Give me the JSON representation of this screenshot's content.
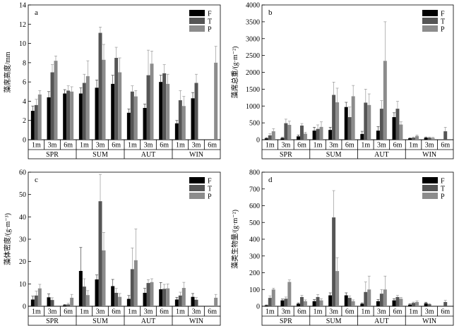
{
  "chart_data": [
    {
      "type": "bar",
      "panel": "a",
      "ylabel": "藻席高度/mm",
      "ylim": [
        0,
        14
      ],
      "yticks": [
        0,
        2,
        4,
        6,
        8,
        10,
        12,
        14
      ],
      "grid": false,
      "legend_position": "top-right",
      "seasons": [
        "SPR",
        "SUM",
        "AUT",
        "WIN"
      ],
      "categories": [
        "1m",
        "3m",
        "6m"
      ],
      "series": [
        {
          "name": "F",
          "color": "#000000",
          "values": [
            [
              3.0,
              4.4,
              4.8
            ],
            [
              4.8,
              5.4,
              5.8
            ],
            [
              2.8,
              3.3,
              6.0
            ],
            [
              1.7,
              4.3,
              null
            ]
          ],
          "errors": [
            [
              0.5,
              0.6,
              0.4
            ],
            [
              0.6,
              0.8,
              0.9
            ],
            [
              0.4,
              0.4,
              0.7
            ],
            [
              0.3,
              0.6,
              null
            ]
          ]
        },
        {
          "name": "T",
          "color": "#555555",
          "values": [
            [
              3.6,
              7.0,
              5.1
            ],
            [
              5.9,
              11.1,
              8.5
            ],
            [
              5.0,
              6.7,
              6.9
            ],
            [
              4.1,
              5.9,
              null
            ]
          ],
          "errors": [
            [
              0.6,
              0.8,
              0.5
            ],
            [
              0.9,
              0.6,
              1.1
            ],
            [
              0.6,
              2.6,
              0.9
            ],
            [
              1.0,
              0.9,
              null
            ]
          ]
        },
        {
          "name": "P",
          "color": "#8c8c8c",
          "values": [
            [
              4.7,
              8.2,
              5.0
            ],
            [
              6.6,
              8.3,
              7.0
            ],
            [
              4.5,
              7.9,
              5.8
            ],
            [
              3.5,
              null,
              8.0
            ]
          ],
          "errors": [
            [
              0.4,
              0.5,
              0.5
            ],
            [
              1.6,
              1.6,
              1.5
            ],
            [
              0.6,
              1.3,
              1.0
            ],
            [
              1.0,
              null,
              1.7
            ]
          ]
        }
      ]
    },
    {
      "type": "bar",
      "panel": "b",
      "ylabel": "藻席总重/(g·m⁻²)",
      "ylim": [
        0,
        4000
      ],
      "yticks": [
        0,
        500,
        1000,
        1500,
        2000,
        2500,
        3000,
        3500,
        4000
      ],
      "grid": false,
      "legend_position": "top-right",
      "seasons": [
        "SPR",
        "SUM",
        "AUT",
        "WIN"
      ],
      "categories": [
        "1m",
        "3m",
        "6m"
      ],
      "series": [
        {
          "name": "F",
          "color": "#000000",
          "values": [
            [
              40,
              50,
              100
            ],
            [
              270,
              290,
              970
            ],
            [
              170,
              270,
              670
            ],
            [
              40,
              60,
              null
            ]
          ],
          "errors": [
            [
              20,
              20,
              40
            ],
            [
              100,
              80,
              140
            ],
            [
              80,
              120,
              130
            ],
            [
              15,
              20,
              null
            ]
          ]
        },
        {
          "name": "T",
          "color": "#555555",
          "values": [
            [
              130,
              490,
              420
            ],
            [
              320,
              1330,
              670
            ],
            [
              1100,
              920,
              920
            ],
            [
              60,
              60,
              250
            ]
          ],
          "errors": [
            [
              50,
              120,
              60
            ],
            [
              120,
              380,
              300
            ],
            [
              400,
              240,
              220
            ],
            [
              20,
              20,
              120
            ]
          ]
        },
        {
          "name": "P",
          "color": "#8c8c8c",
          "values": [
            [
              250,
              440,
              180
            ],
            [
              380,
              1110,
              1290
            ],
            [
              1030,
              2340,
              450
            ],
            [
              110,
              50,
              null
            ]
          ],
          "errors": [
            [
              80,
              110,
              40
            ],
            [
              150,
              420,
              320
            ],
            [
              330,
              1160,
              80
            ],
            [
              30,
              20,
              null
            ]
          ]
        }
      ]
    },
    {
      "type": "bar",
      "panel": "c",
      "ylabel": "藻体密度/(g·m⁻³)",
      "ylim": [
        0,
        60
      ],
      "yticks": [
        0,
        10,
        20,
        30,
        40,
        50,
        60
      ],
      "grid": false,
      "legend_position": "top-right",
      "seasons": [
        "SPR",
        "SUM",
        "AUT",
        "WIN"
      ],
      "categories": [
        "1m",
        "3m",
        "6m"
      ],
      "series": [
        {
          "name": "F",
          "color": "#000000",
          "values": [
            [
              3.0,
              4.0,
              0.5
            ],
            [
              15.8,
              12.0,
              9.0
            ],
            [
              3.3,
              6.0,
              7.6
            ],
            [
              3.0,
              4.2,
              null
            ]
          ],
          "errors": [
            [
              1.5,
              1.5,
              0.3
            ],
            [
              10.5,
              2.0,
              3.0
            ],
            [
              1.5,
              2.0,
              3.0
            ],
            [
              1.0,
              1.5,
              null
            ]
          ]
        },
        {
          "name": "T",
          "color": "#555555",
          "values": [
            [
              4.8,
              2.8,
              0.8
            ],
            [
              8.8,
              47.0,
              6.0
            ],
            [
              16.6,
              10.4,
              7.8
            ],
            [
              4.8,
              2.9,
              null
            ]
          ],
          "errors": [
            [
              2.0,
              1.0,
              0.5
            ],
            [
              3.5,
              12.0,
              2.0
            ],
            [
              9.5,
              1.5,
              2.0
            ],
            [
              1.5,
              1.0,
              null
            ]
          ]
        },
        {
          "name": "P",
          "color": "#8c8c8c",
          "values": [
            [
              8.0,
              null,
              3.8
            ],
            [
              5.0,
              25.0,
              4.2
            ],
            [
              20.6,
              10.8,
              8.0
            ],
            [
              8.2,
              null,
              3.8
            ]
          ],
          "errors": [
            [
              1.8,
              null,
              1.5
            ],
            [
              2.0,
              8.0,
              1.5
            ],
            [
              14.0,
              1.5,
              2.0
            ],
            [
              2.5,
              null,
              1.5
            ]
          ]
        }
      ]
    },
    {
      "type": "bar",
      "panel": "d",
      "ylabel": "藻类生物量/(g·m⁻²)",
      "ylim": [
        0,
        800
      ],
      "yticks": [
        0,
        100,
        200,
        300,
        400,
        500,
        600,
        700,
        800
      ],
      "grid": false,
      "legend_position": "top-right",
      "seasons": [
        "SPR",
        "SUM",
        "AUT",
        "WIN"
      ],
      "categories": [
        "1m",
        "3m",
        "6m"
      ],
      "series": [
        {
          "name": "F",
          "color": "#000000",
          "values": [
            [
              5,
              35,
              15
            ],
            [
              30,
              65,
              65
            ],
            [
              15,
              30,
              35
            ],
            [
              10,
              18,
              null
            ]
          ],
          "errors": [
            [
              3,
              8,
              5
            ],
            [
              10,
              15,
              15
            ],
            [
              5,
              10,
              10
            ],
            [
              4,
              6,
              null
            ]
          ]
        },
        {
          "name": "T",
          "color": "#555555",
          "values": [
            [
              50,
              45,
              55
            ],
            [
              55,
              530,
              50
            ],
            [
              85,
              75,
              55
            ],
            [
              20,
              12,
              25
            ]
          ],
          "errors": [
            [
              12,
              10,
              10
            ],
            [
              15,
              160,
              12
            ],
            [
              60,
              25,
              10
            ],
            [
              5,
              4,
              10
            ]
          ]
        },
        {
          "name": "P",
          "color": "#8c8c8c",
          "values": [
            [
              100,
              145,
              30
            ],
            [
              35,
              210,
              30
            ],
            [
              100,
              100,
              45
            ],
            [
              25,
              null,
              null
            ]
          ],
          "errors": [
            [
              8,
              12,
              8
            ],
            [
              10,
              80,
              8
            ],
            [
              80,
              80,
              8
            ],
            [
              6,
              null,
              null
            ]
          ]
        }
      ]
    }
  ]
}
